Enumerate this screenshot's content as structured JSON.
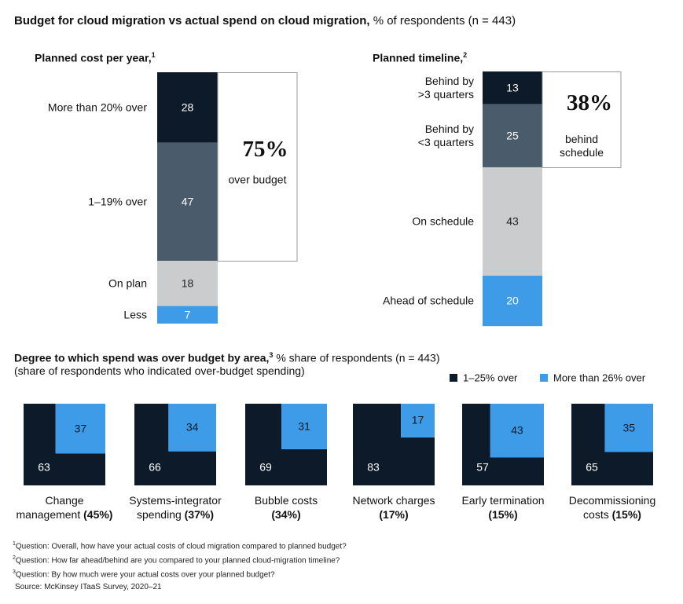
{
  "title": "Budget for cloud migration vs actual spend on cloud migration,",
  "subtitle": "% of respondents (n = 443)",
  "chart_data": [
    {
      "type": "stacked-bar",
      "title": "Planned cost per year,",
      "title_note": "1",
      "categories": [
        "More than 20% over",
        "1–19% over",
        "On plan",
        "Less"
      ],
      "values": [
        28,
        47,
        18,
        7
      ],
      "colors": [
        "#0c1a2a",
        "#4a5b6b",
        "#cbccce",
        "#3e9be8"
      ],
      "callout": {
        "value": 75,
        "label": "75%",
        "text": "over budget"
      }
    },
    {
      "type": "stacked-bar",
      "title": "Planned timeline,",
      "title_note": "2",
      "categories": [
        "Behind by\n>3 quarters",
        "Behind by\n<3 quarters",
        "On schedule",
        "Ahead of schedule"
      ],
      "values": [
        13,
        25,
        43,
        20
      ],
      "colors": [
        "#0c1a2a",
        "#4a5b6b",
        "#cbccce",
        "#3e9be8"
      ],
      "callout": {
        "value": 38,
        "label": "38%",
        "text": "behind\nschedule"
      }
    },
    {
      "type": "area-square",
      "title": "Degree to which spend was over budget by area,",
      "title_note": "3",
      "subtitle": "% share of respondents (n = 443)",
      "note": "(share of respondents who indicated over-budget spending)",
      "categories": [
        "Change\nmanagement",
        "Systems-integrator\nspending",
        "Bubble costs",
        "Network charges",
        "Early termination",
        "Decommissioning\ncosts"
      ],
      "category_shares": [
        "(45%)",
        "(37%)",
        "(34%)",
        "(17%)",
        "(15%)",
        "(15%)"
      ],
      "series": [
        {
          "name": "1–25% over",
          "color": "#0c1a2a",
          "values": [
            63,
            66,
            69,
            83,
            57,
            65
          ]
        },
        {
          "name": "More than 26% over",
          "color": "#3e9be8",
          "values": [
            37,
            34,
            31,
            17,
            43,
            35
          ]
        }
      ]
    }
  ],
  "footnotes": [
    {
      "marker": "1",
      "text": "Question: Overall, how have your actual costs of cloud migration compared to planned budget?"
    },
    {
      "marker": "2",
      "text": "Question: How far ahead/behind are you compared to your planned cloud-migration timeline?"
    },
    {
      "marker": "3",
      "text": "Question: By how much were your actual costs over your planned budget?"
    }
  ],
  "source": "Source: McKinsey ITaaS Survey, 2020–21"
}
